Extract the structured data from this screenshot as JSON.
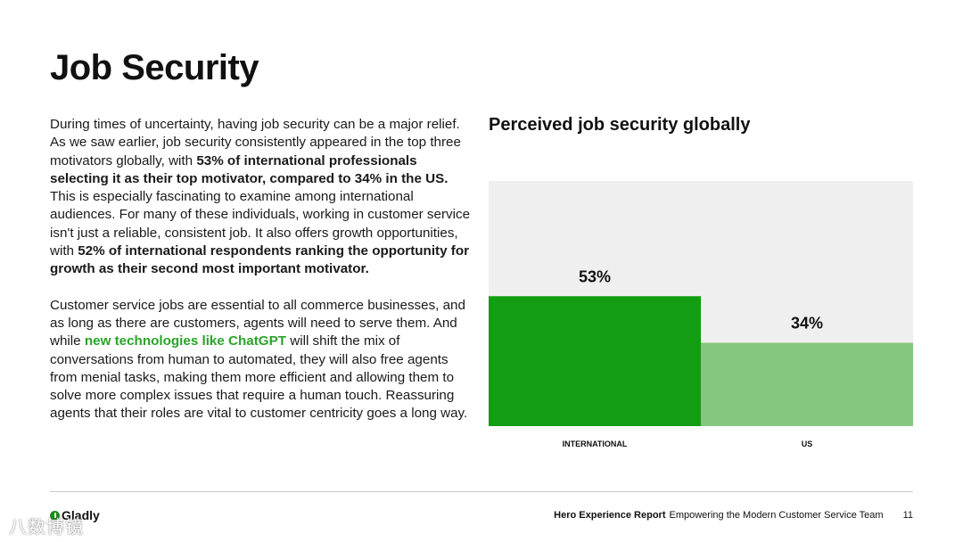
{
  "title": "Job Security",
  "body": {
    "p1": [
      {
        "t": "During times of uncertainty, having job security can be a major relief. As we saw earlier, job security consistently appeared in the top three motivators globally, with ",
        "bold": false
      },
      {
        "t": "53% of international professionals selecting it as their top motivator, compared to 34% in the US.",
        "bold": true
      },
      {
        "t": " This is especially fascinating to examine among international audiences. For many of these individuals, working in customer service isn't just a reliable, consistent job. It also offers growth opportunities, with ",
        "bold": false
      },
      {
        "t": "52% of international respondents ranking the opportunity for growth as their second most important motivator.",
        "bold": true
      }
    ],
    "p2_before": "Customer service jobs are essential to all commerce businesses, and as long as there are customers, agents will need to serve them. And while ",
    "p2_link": "new technologies like ChatGPT",
    "p2_after": " will shift the mix of conversations from human to automated, they will also free agents from menial tasks, making them more efficient and allowing them to solve more complex issues that require a human touch. Reassuring agents that their roles are vital to customer centricity goes a long way."
  },
  "colors": {
    "international": "#139d13",
    "us": "#85c77e",
    "chart_bg": "#efefef",
    "link": "#2aa32a"
  },
  "chart_data": {
    "type": "bar",
    "title": "Perceived job security globally",
    "categories": [
      "INTERNATIONAL",
      "US"
    ],
    "values": [
      53,
      34
    ],
    "value_labels": [
      "53%",
      "34%"
    ],
    "ylim": [
      0,
      100
    ],
    "xlabel": "",
    "ylabel": ""
  },
  "footer": {
    "logo_text": "Gladly",
    "report_bold": "Hero Experience Report",
    "report_sub": "Empowering the Modern Customer Service Team",
    "page": "11"
  },
  "watermark": "八数博镜"
}
